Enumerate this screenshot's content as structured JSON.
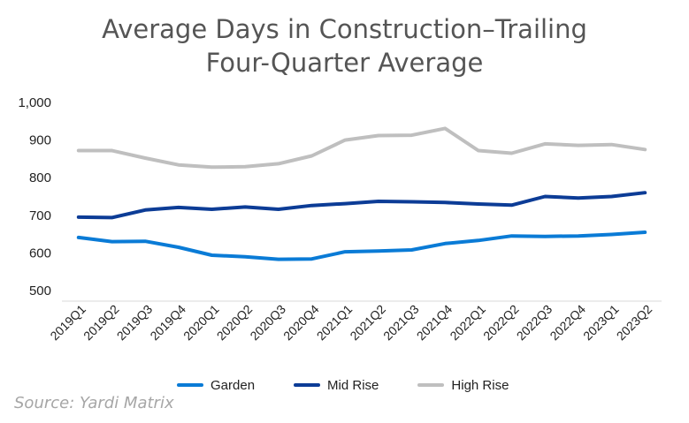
{
  "chart_data": {
    "type": "line",
    "title_line1": "Average Days in Construction–Trailing",
    "title_line2": "Four-Quarter Average",
    "x": [
      "2019Q1",
      "2019Q2",
      "2019Q3",
      "2019Q4",
      "2020Q1",
      "2020Q2",
      "2020Q3",
      "2020Q4",
      "2021Q1",
      "2021Q2",
      "2021Q3",
      "2021Q4",
      "2022Q1",
      "2022Q2",
      "2022Q3",
      "2022Q4",
      "2023Q1",
      "2023Q2"
    ],
    "ylim": [
      500,
      1000
    ],
    "yticks": [
      500,
      600,
      700,
      800,
      900,
      1000
    ],
    "ytick_labels": [
      "500",
      "600",
      "700",
      "800",
      "900",
      "1,000"
    ],
    "grid": false,
    "legend_position": "bottom",
    "series": [
      {
        "name": "Garden",
        "color": "#0a7bd6",
        "values": [
          641,
          630,
          631,
          615,
          594,
          590,
          583,
          584,
          603,
          605,
          608,
          625,
          633,
          645,
          644,
          645,
          649,
          655
        ]
      },
      {
        "name": "Mid Rise",
        "color": "#0c3c96",
        "values": [
          695,
          694,
          714,
          721,
          716,
          722,
          716,
          726,
          731,
          737,
          736,
          734,
          730,
          727,
          750,
          746,
          750,
          760
        ]
      },
      {
        "name": "High Rise",
        "color": "#bfbfbf",
        "values": [
          872,
          872,
          852,
          834,
          828,
          829,
          837,
          858,
          900,
          912,
          913,
          931,
          872,
          865,
          890,
          886,
          888,
          875
        ]
      }
    ]
  },
  "source_text": "Source: Yardi Matrix"
}
